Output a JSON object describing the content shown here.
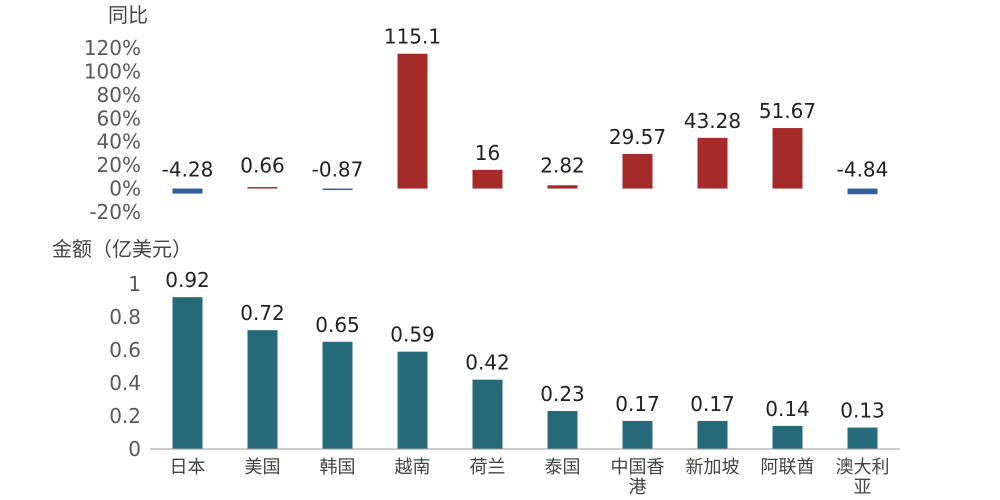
{
  "chart_data": [
    {
      "type": "bar",
      "ylabel": "同比",
      "y_ticks": [
        "120%",
        "100%",
        "80%",
        "60%",
        "40%",
        "20%",
        "0%",
        "-20%"
      ],
      "ylim": [
        -20,
        120
      ],
      "categories": [
        "日本",
        "美国",
        "韩国",
        "越南",
        "荷兰",
        "泰国",
        "中国香港",
        "新加坡",
        "阿联酋",
        "澳大利亚"
      ],
      "values": [
        -4.28,
        0.66,
        -0.87,
        115.1,
        16,
        2.82,
        29.57,
        43.28,
        51.67,
        -4.84
      ],
      "value_labels": [
        "-4.28",
        "0.66",
        "-0.87",
        "115.1",
        "16",
        "2.82",
        "29.57",
        "43.28",
        "51.67",
        "-4.84"
      ],
      "positive_color": "#A52A2A",
      "negative_color": "#2E5E9E",
      "grid": false
    },
    {
      "type": "bar",
      "ylabel": "金额（亿美元）",
      "y_ticks": [
        "1",
        "0.8",
        "0.6",
        "0.4",
        "0.2",
        "0"
      ],
      "ylim": [
        0,
        1
      ],
      "categories": [
        "日本",
        "美国",
        "韩国",
        "越南",
        "荷兰",
        "泰国",
        "中国香港",
        "新加坡",
        "阿联酋",
        "澳大利亚"
      ],
      "category_lines": [
        [
          "日本"
        ],
        [
          "美国"
        ],
        [
          "韩国"
        ],
        [
          "越南"
        ],
        [
          "荷兰"
        ],
        [
          "泰国"
        ],
        [
          "中国香",
          "港"
        ],
        [
          "新加坡"
        ],
        [
          "阿联酋"
        ],
        [
          "澳大利",
          "亚"
        ]
      ],
      "values": [
        0.92,
        0.72,
        0.65,
        0.59,
        0.42,
        0.23,
        0.17,
        0.17,
        0.14,
        0.13
      ],
      "value_labels": [
        "0.92",
        "0.72",
        "0.65",
        "0.59",
        "0.42",
        "0.23",
        "0.17",
        "0.17",
        "0.14",
        "0.13"
      ],
      "color": "#266A7A",
      "grid": false
    }
  ]
}
